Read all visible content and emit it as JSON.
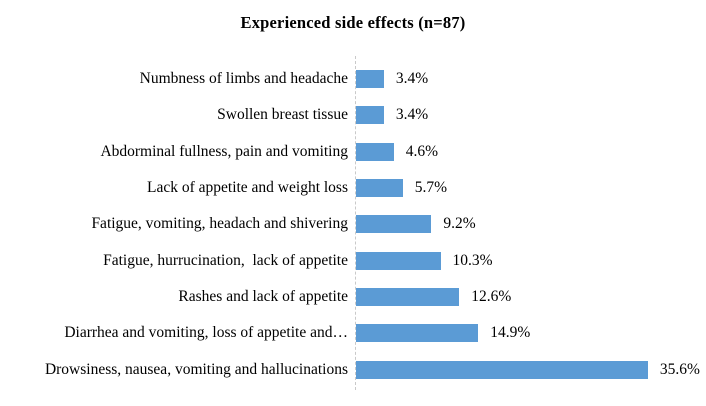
{
  "chart_data": {
    "type": "bar",
    "orientation": "horizontal",
    "title": "Experienced side effects (n=87)",
    "categories": [
      "Numbness of limbs and headache",
      "Swollen breast tissue",
      "Abdorminal fullness, pain and vomiting",
      "Lack of appetite and weight loss",
      "Fatigue, vomiting, headach and shivering",
      "Fatigue, hurrucination,  lack of appetite",
      "Rashes and lack of appetite",
      "Diarrhea and vomiting, loss of appetite and…",
      "Drowsiness, nausea, vomiting and hallucinations"
    ],
    "values": [
      3.4,
      3.4,
      4.6,
      5.7,
      9.2,
      10.3,
      12.6,
      14.9,
      35.6
    ],
    "data_labels": [
      "3.4%",
      "3.4%",
      "4.6%",
      "5.7%",
      "9.2%",
      "10.3%",
      "12.6%",
      "14.9%",
      "35.6%"
    ],
    "xlim": [
      0,
      40
    ],
    "unit": "%",
    "bar_color": "#5B9BD5",
    "axis_line_color": "#c9c9c9",
    "grid": false,
    "legend": false,
    "value_labels_visible": true,
    "axis_tick_labels_visible": false
  }
}
